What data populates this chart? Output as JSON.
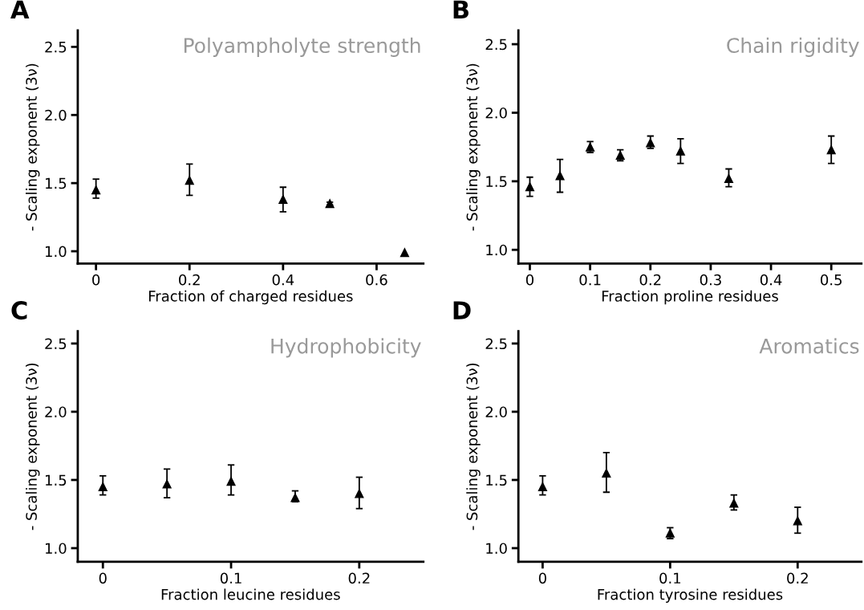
{
  "chart_data": [
    {
      "type": "scatter",
      "title": "Polyampholyte strength",
      "xlabel": "Fraction of charged residues",
      "ylabel": "- Scaling exponent (3ν)",
      "annotations": [
        "A"
      ],
      "marker": "triangle",
      "x": [
        0,
        0.2,
        0.4,
        0.5,
        0.66
      ],
      "series": [
        {
          "color": "#000000",
          "values": [
            1.45,
            1.52,
            1.38,
            1.35,
            0.99
          ],
          "errors": [
            [
              1.39,
              1.53
            ],
            [
              1.41,
              1.64
            ],
            [
              1.29,
              1.47
            ],
            [
              1.34,
              1.36
            ],
            null
          ]
        }
      ],
      "xlim": [
        -0.039,
        0.7
      ],
      "xticks": [
        0,
        0.2,
        0.4,
        0.6
      ],
      "ylim": [
        0.91,
        2.62
      ],
      "yticks": [
        {
          "value": 1,
          "label": "1.0"
        },
        {
          "value": 1.5,
          "label": "1.5"
        },
        {
          "value": 2,
          "label": "2.0"
        },
        {
          "value": 2.5,
          "label": "2.5"
        }
      ]
    },
    {
      "type": "scatter",
      "title": "Chain rigidity",
      "xlabel": "Fraction proline residues",
      "ylabel": "- Scaling exponent (3ν)",
      "annotations": [
        "B"
      ],
      "marker": "triangle",
      "x": [
        0,
        0.05,
        0.1,
        0.15,
        0.2,
        0.25,
        0.33,
        0.5
      ],
      "series": [
        {
          "color": "#000000",
          "values": [
            1.46,
            1.54,
            1.75,
            1.69,
            1.78,
            1.72,
            1.52,
            1.73
          ],
          "errors": [
            [
              1.39,
              1.53
            ],
            [
              1.42,
              1.66
            ],
            [
              1.71,
              1.79
            ],
            [
              1.65,
              1.73
            ],
            [
              1.74,
              1.83
            ],
            [
              1.63,
              1.81
            ],
            [
              1.46,
              1.59
            ],
            [
              1.63,
              1.83
            ]
          ]
        }
      ],
      "xlim": [
        -0.019,
        0.55
      ],
      "xticks": [
        0,
        0.1,
        0.2,
        0.3,
        0.4,
        0.5
      ],
      "ylim": [
        0.9,
        2.6
      ],
      "yticks": [
        {
          "value": 1,
          "label": "1.0"
        },
        {
          "value": 1.5,
          "label": "1.5"
        },
        {
          "value": 2,
          "label": "2.0"
        },
        {
          "value": 2.5,
          "label": "2.5"
        }
      ]
    },
    {
      "type": "scatter",
      "title": "Hydrophobicity",
      "xlabel": "Fraction leucine residues",
      "ylabel": "- Scaling exponent (3ν)",
      "annotations": [
        "C"
      ],
      "marker": "triangle",
      "x": [
        0,
        0.05,
        0.1,
        0.15,
        0.2
      ],
      "series": [
        {
          "color": "#000000",
          "values": [
            1.45,
            1.47,
            1.49,
            1.37,
            1.4
          ],
          "errors": [
            [
              1.39,
              1.53
            ],
            [
              1.37,
              1.58
            ],
            [
              1.39,
              1.61
            ],
            [
              1.34,
              1.42
            ],
            [
              1.29,
              1.52
            ]
          ]
        }
      ],
      "xlim": [
        -0.0196,
        0.25
      ],
      "xticks": [
        0,
        0.1,
        0.2
      ],
      "ylim": [
        0.9,
        2.59
      ],
      "yticks": [
        {
          "value": 1,
          "label": "1.0"
        },
        {
          "value": 1.5,
          "label": "1.5"
        },
        {
          "value": 2,
          "label": "2.0"
        },
        {
          "value": 2.5,
          "label": "2.5"
        }
      ]
    },
    {
      "type": "scatter",
      "title": "Aromatics",
      "xlabel": "Fraction tyrosine residues",
      "ylabel": "- Scaling exponent (3ν)",
      "annotations": [
        "D"
      ],
      "marker": "triangle",
      "x": [
        0,
        0.05,
        0.1,
        0.15,
        0.2
      ],
      "series": [
        {
          "color": "#000000",
          "values": [
            1.45,
            1.55,
            1.11,
            1.33,
            1.2
          ],
          "errors": [
            [
              1.39,
              1.53
            ],
            [
              1.41,
              1.7
            ],
            [
              1.07,
              1.15
            ],
            [
              1.28,
              1.39
            ],
            [
              1.11,
              1.3
            ]
          ]
        }
      ],
      "xlim": [
        -0.019,
        0.25
      ],
      "xticks": [
        0,
        0.1,
        0.2
      ],
      "ylim": [
        0.9,
        2.59
      ],
      "yticks": [
        {
          "value": 1,
          "label": "1.0"
        },
        {
          "value": 1.5,
          "label": "1.5"
        },
        {
          "value": 2,
          "label": "2.0"
        },
        {
          "value": 2.5,
          "label": "2.5"
        }
      ]
    }
  ]
}
